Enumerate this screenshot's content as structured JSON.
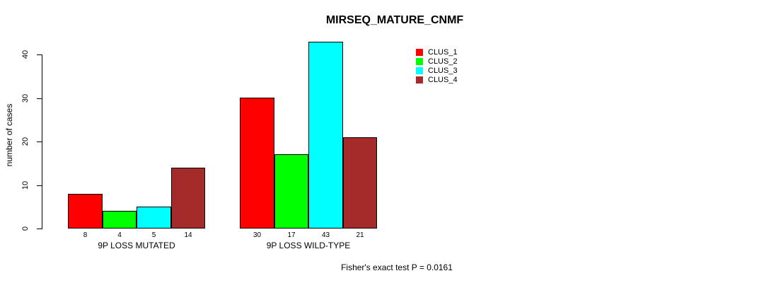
{
  "chart_data": {
    "type": "bar",
    "title": "MIRSEQ_MATURE_CNMF",
    "ylabel": "number of cases",
    "xlabel": "",
    "categories": [
      "9P LOSS MUTATED",
      "9P LOSS WILD-TYPE"
    ],
    "series": [
      {
        "name": "CLUS_1",
        "color": "#FF0000",
        "values": [
          8,
          30
        ]
      },
      {
        "name": "CLUS_2",
        "color": "#00FF00",
        "values": [
          4,
          17
        ]
      },
      {
        "name": "CLUS_3",
        "color": "#00FFFF",
        "values": [
          5,
          43
        ]
      },
      {
        "name": "CLUS_4",
        "color": "#A52A2A",
        "values": [
          14,
          21
        ]
      }
    ],
    "yticks": [
      0,
      10,
      20,
      30,
      40
    ],
    "ylim": [
      0,
      43
    ],
    "grid": false,
    "show_values_under_bars": true,
    "legend_position": "top-right",
    "annotation": "Fisher's exact test P = 0.0161"
  }
}
